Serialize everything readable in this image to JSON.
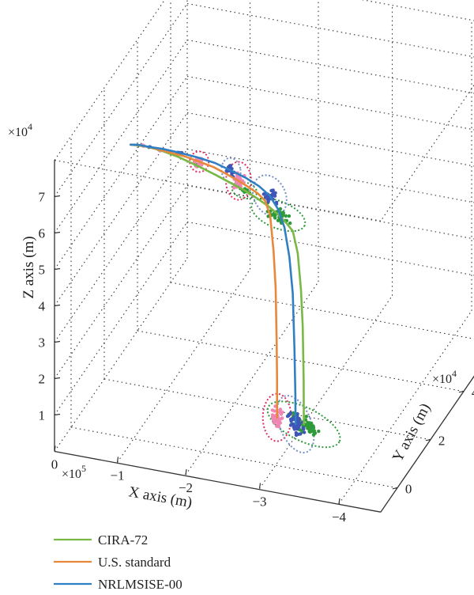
{
  "chart_data": {
    "type": "line",
    "projection": "3d",
    "xlabel": "X axis (m)",
    "ylabel": "Y axis (m)",
    "zlabel": "Z axis (m)",
    "x_multiplier": "×10^5",
    "y_multiplier": "×10^4",
    "z_multiplier": "×10^4",
    "x_ticks": [
      "0",
      "−1",
      "−2",
      "−3",
      "−4"
    ],
    "y_ticks": [
      "0",
      "2",
      "4",
      "6"
    ],
    "z_ticks": [
      "1",
      "2",
      "3",
      "4",
      "5",
      "6",
      "7"
    ],
    "xlim": [
      0,
      -450000
    ],
    "ylim": [
      -10000,
      70000
    ],
    "zlim": [
      0,
      80000
    ],
    "grid": true,
    "legend_position": "bottom-left",
    "series": [
      {
        "name": "CIRA-72",
        "color": "#79b845",
        "x": [
          -100000,
          -118000,
          -138000,
          -162000,
          -188000,
          -212000,
          -232000,
          -250000,
          -265000,
          -280000,
          -292000,
          -302000,
          -310000,
          -316000,
          -320000,
          -322000,
          -323000,
          -323000
        ],
        "y": [
          -2000,
          -1000,
          0,
          800,
          1500,
          2100,
          2800,
          3600,
          4300,
          4700,
          5000,
          5200,
          5400,
          5600,
          5700,
          5800,
          5900,
          6000
        ],
        "z": [
          82000,
          81500,
          80500,
          79000,
          77000,
          75000,
          73000,
          71000,
          69000,
          67000,
          65000,
          63000,
          61000,
          55000,
          45000,
          35000,
          20000,
          8000
        ],
        "scatter_points": [
          {
            "x": -138000,
            "y": 0,
            "z": 80500
          },
          {
            "x": -188000,
            "y": 1500,
            "z": 77000
          },
          {
            "x": -250000,
            "y": 3600,
            "z": 71000
          },
          {
            "x": -292000,
            "y": 5000,
            "z": 65000
          },
          {
            "x": -323000,
            "y": 6000,
            "z": 8000
          }
        ]
      },
      {
        "name": "U.S. standard",
        "color": "#e8883a",
        "x": [
          -100000,
          -106000,
          -114000,
          -124000,
          -136000,
          -150000,
          -166000,
          -184000,
          -202000,
          -218000,
          -232000,
          -244000,
          -254000,
          -262000,
          -268000,
          -272000,
          -274000,
          -275000,
          -275000,
          -275000
        ],
        "y": [
          -2000,
          -1000,
          0,
          1000,
          2000,
          3000,
          4000,
          5000,
          6000,
          7000,
          8000,
          9000,
          10000,
          10600,
          11000,
          11300,
          11600,
          11800,
          12000,
          12000
        ],
        "z": [
          82000,
          81500,
          80800,
          80000,
          79000,
          78000,
          77000,
          75500,
          74000,
          72000,
          70000,
          68000,
          66000,
          64000,
          60000,
          50000,
          40000,
          25000,
          15000,
          4000
        ],
        "scatter_points": [
          {
            "x": -114000,
            "y": 0,
            "z": 80800
          },
          {
            "x": -136000,
            "y": 2000,
            "z": 79000
          },
          {
            "x": -184000,
            "y": 5000,
            "z": 75500
          },
          {
            "x": -232000,
            "y": 8000,
            "z": 70000
          },
          {
            "x": -275000,
            "y": 12000,
            "z": 4000
          }
        ]
      },
      {
        "name": "NRLMSISE-00",
        "color": "#2f7fc4",
        "x": [
          -100000,
          -110000,
          -124000,
          -140000,
          -160000,
          -182000,
          -204000,
          -224000,
          -242000,
          -258000,
          -271000,
          -281000,
          -289000,
          -295000,
          -299000,
          -301000,
          -302000,
          -302000
        ],
        "y": [
          -2000,
          -1000,
          0,
          1500,
          3000,
          4500,
          6000,
          7000,
          8000,
          8800,
          9400,
          9800,
          10100,
          10300,
          10500,
          10600,
          10700,
          10800
        ],
        "z": [
          82000,
          81600,
          80800,
          79800,
          78500,
          77000,
          75200,
          73200,
          71200,
          69000,
          66500,
          63000,
          58000,
          50000,
          40000,
          25000,
          12000,
          4000
        ],
        "scatter_points": [
          {
            "x": -124000,
            "y": 0,
            "z": 80800
          },
          {
            "x": -160000,
            "y": 3000,
            "z": 78500
          },
          {
            "x": -224000,
            "y": 7000,
            "z": 73200
          },
          {
            "x": -271000,
            "y": 9400,
            "z": 66500
          },
          {
            "x": -302000,
            "y": 10800,
            "z": 4000
          }
        ]
      }
    ]
  },
  "legend": [
    {
      "label": "CIRA-72",
      "color": "#79b845"
    },
    {
      "label": "U.S. standard",
      "color": "#e8883a"
    },
    {
      "label": "NRLMSISE-00",
      "color": "#2f7fc4"
    }
  ],
  "colors": {
    "cira_dots": "#2e9a3a",
    "us_dots": "#ef86b4",
    "nrl_dots": "#3f55b8",
    "us_ellipse": "#e03060",
    "nrl_ellipse": "#7890c8",
    "cira_ellipse": "#2e9a3a",
    "grid": "#333333",
    "axis": "#333333"
  }
}
